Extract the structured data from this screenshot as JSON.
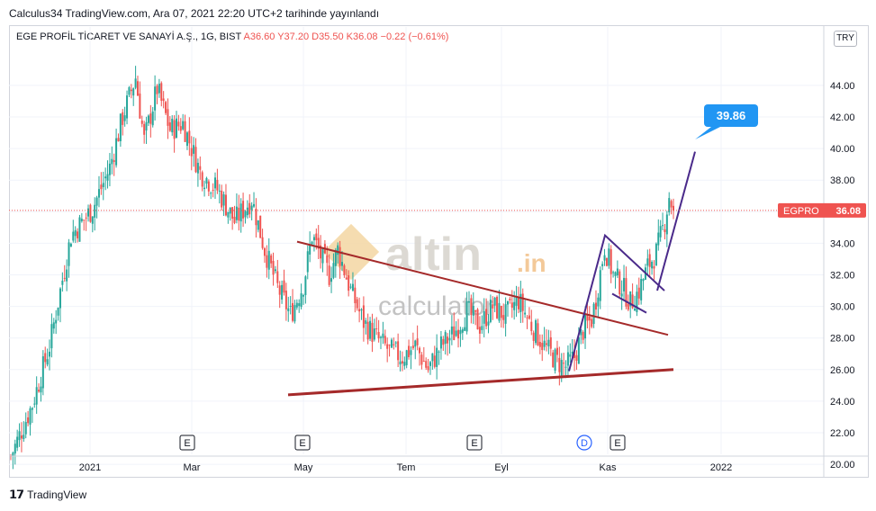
{
  "publish_line": "Calculus34 TradingView.com, Ara 07, 2021 22:20 UTC+2 tarihinde yayınlandı",
  "legend": {
    "symbol": "EGE PROFİL TİCARET VE SANAYİ A.Ş., 1G, BIST",
    "ohlc": "A36.60 Y37.20 D35.50 K36.08 −0.22 (−0.61%)"
  },
  "currency_badge": "TRY",
  "footer_brand": "TradingView",
  "watermark": {
    "brand_main": "altin",
    "brand_tld": ".in",
    "sub": "calculator"
  },
  "price_label": {
    "ticker": "EGPRO",
    "value": "36.08"
  },
  "target_label": "39.86",
  "colors": {
    "up": "#26a69a",
    "down": "#ef5350",
    "trend_red": "#a52a2a",
    "trend_purple": "#4a2a8a",
    "target_blue": "#2196f3"
  },
  "chart_data": {
    "type": "candlestick",
    "title": "EGE PROFİL TİCARET VE SANAYİ A.Ş., 1G, BIST",
    "y_ticks": [
      "44.00",
      "42.00",
      "40.00",
      "38.00",
      "36.00",
      "34.00",
      "32.00",
      "30.00",
      "28.00",
      "26.00",
      "24.00",
      "22.00",
      "20.00"
    ],
    "ylim": [
      20,
      45.5
    ],
    "x_ticks": [
      "2021",
      "Mar",
      "May",
      "Tem",
      "Eyl",
      "Kas",
      "2022"
    ],
    "last_close": 36.08,
    "target": 39.86,
    "event_markers": [
      "E",
      "E",
      "E",
      "D",
      "E"
    ],
    "price_path": [
      [
        0,
        20.5
      ],
      [
        10,
        23.8
      ],
      [
        18,
        27.5
      ],
      [
        28,
        34.5
      ],
      [
        38,
        36.2
      ],
      [
        46,
        38.8
      ],
      [
        52,
        42
      ],
      [
        58,
        44.5
      ],
      [
        62,
        40.5
      ],
      [
        68,
        43.8
      ],
      [
        74,
        41.2
      ],
      [
        80,
        41.6
      ],
      [
        88,
        38.5
      ],
      [
        96,
        37.4
      ],
      [
        104,
        35.4
      ],
      [
        112,
        36.8
      ],
      [
        118,
        33.6
      ],
      [
        124,
        31.2
      ],
      [
        130,
        29.5
      ],
      [
        136,
        31.4
      ],
      [
        140,
        34.5
      ],
      [
        144,
        33.2
      ],
      [
        148,
        32
      ],
      [
        152,
        33.6
      ],
      [
        158,
        31
      ],
      [
        164,
        29
      ],
      [
        170,
        28
      ],
      [
        176,
        27.2
      ],
      [
        182,
        26.8
      ],
      [
        188,
        27.5
      ],
      [
        194,
        26
      ],
      [
        200,
        27.5
      ],
      [
        206,
        28.3
      ],
      [
        212,
        29.7
      ],
      [
        218,
        28.8
      ],
      [
        224,
        30
      ],
      [
        230,
        29.4
      ],
      [
        236,
        30.4
      ],
      [
        242,
        28.8
      ],
      [
        248,
        27.5
      ],
      [
        254,
        26.5
      ],
      [
        258,
        26.2
      ],
      [
        262,
        26.8
      ],
      [
        266,
        28.5
      ],
      [
        270,
        29.2
      ],
      [
        272,
        30.5
      ],
      [
        276,
        33.8
      ],
      [
        280,
        32
      ],
      [
        284,
        31.3
      ],
      [
        288,
        30.2
      ],
      [
        292,
        31
      ],
      [
        296,
        32.5
      ],
      [
        300,
        33.4
      ],
      [
        304,
        35.4
      ],
      [
        306,
        37
      ],
      [
        308,
        36.08
      ]
    ],
    "trendlines": [
      {
        "name": "resistance",
        "from": [
          "May",
          34.1
        ],
        "to": [
          "Kas",
          28.2
        ]
      },
      {
        "name": "support",
        "from": [
          "May",
          24.4
        ],
        "to": [
          "Ara",
          26.0
        ]
      }
    ]
  }
}
